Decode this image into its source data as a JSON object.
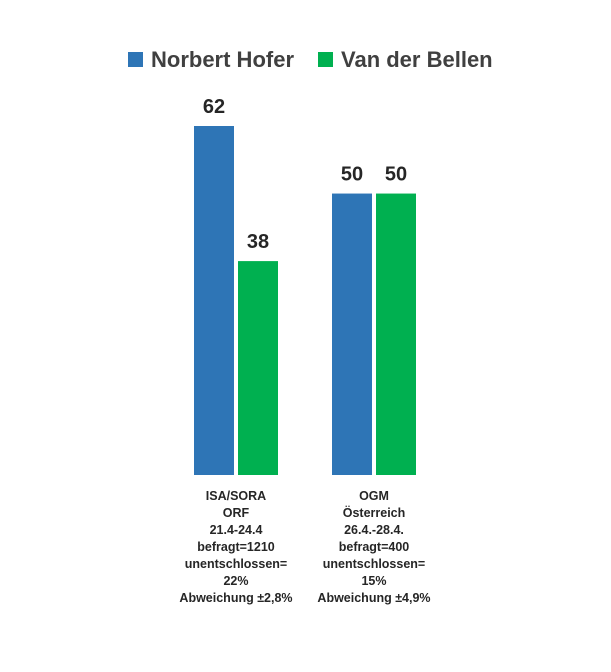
{
  "chart_data": {
    "type": "bar",
    "title": "",
    "xlabel": "",
    "ylabel": "",
    "ylim": [
      0,
      62
    ],
    "grid": false,
    "legend_position": "top",
    "categories": [
      [
        "ISA/SORA",
        "ORF",
        "21.4-24.4",
        "befragt=1210",
        "unentschlossen=",
        "22%",
        "Abweichung ±2,8%"
      ],
      [
        "OGM",
        "Österreich",
        "26.4.-28.4.",
        "befragt=400",
        "unentschlossen=",
        "15%",
        "Abweichung ±4,9%"
      ]
    ],
    "series": [
      {
        "name": "Norbert Hofer",
        "color": "#2E75B6",
        "values": [
          62,
          50
        ]
      },
      {
        "name": "Van der Bellen",
        "color": "#00B050",
        "values": [
          38,
          50
        ]
      }
    ]
  }
}
